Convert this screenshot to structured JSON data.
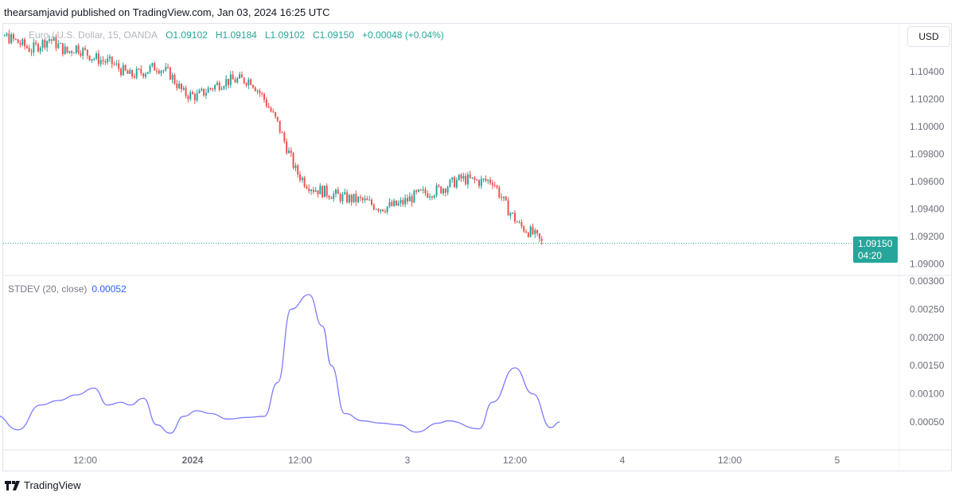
{
  "header": {
    "text": "thearsamjavid published on TradingView.com, Jan 03, 2024 16:25 UTC"
  },
  "legend": {
    "symbol": "Euro / U.S. Dollar, 15, OANDA",
    "open": "O1.09102",
    "high": "H1.09184",
    "low": "L1.09102",
    "close": "C1.09150",
    "change": "+0.00048 (+0.04%)"
  },
  "currency": "USD",
  "last_price": {
    "price": "1.09150",
    "countdown": "04:20"
  },
  "indicator": {
    "name": "STDEV (20, close)",
    "value": "0.00052"
  },
  "footer": {
    "brand": "TradingView"
  },
  "colors": {
    "up": "#26a69a",
    "down": "#ef5350",
    "stdev": "#7b7bff"
  },
  "chart_data": [
    {
      "type": "candlestick",
      "title": "EUR/USD 15m",
      "price_ticks": [
        "1.10400",
        "1.10200",
        "1.10000",
        "1.09800",
        "1.09600",
        "1.09400",
        "1.09200",
        "1.09000"
      ],
      "price_tick_values": [
        1.104,
        1.102,
        1.1,
        1.098,
        1.096,
        1.094,
        1.092,
        1.09
      ],
      "time_ticks": [
        "12:00",
        "2024",
        "12:00",
        "3",
        "12:00",
        "4",
        "12:00",
        "5"
      ],
      "time_tick_hours": [
        12,
        24,
        36,
        48,
        60,
        72,
        84,
        96
      ],
      "close_keypoints_hours": [
        0.5,
        2,
        4,
        6,
        8,
        10,
        11,
        13,
        15,
        17,
        18.5,
        20,
        21.5,
        23,
        24.5,
        26,
        27.5,
        29,
        30.5,
        32,
        33.5,
        34.5,
        35.5,
        36.5,
        37.5,
        39,
        41,
        43,
        45,
        47,
        49,
        51.5,
        54,
        56,
        57.5,
        59,
        60.5,
        62,
        63
      ],
      "close_keypoints": [
        1.1066,
        1.1069,
        1.1063,
        1.1056,
        1.1064,
        1.1054,
        1.1058,
        1.105,
        1.1046,
        1.1037,
        1.104,
        1.1044,
        1.1038,
        1.1024,
        1.1022,
        1.1028,
        1.1033,
        1.1034,
        1.1034,
        1.102,
        1.1002,
        1.0985,
        1.0968,
        1.096,
        1.0955,
        1.0952,
        1.0948,
        1.0946,
        1.0941,
        1.0943,
        1.095,
        1.0954,
        1.0962,
        1.096,
        1.0961,
        1.0942,
        1.0928,
        1.0922,
        1.0915
      ]
    },
    {
      "type": "line",
      "title": "STDEV (20, close)",
      "y_ticks": [
        "0.00300",
        "0.00250",
        "0.00200",
        "0.00150",
        "0.00100",
        "0.00050"
      ],
      "y_tick_values": [
        0.003,
        0.0025,
        0.002,
        0.0015,
        0.001,
        0.0005
      ],
      "x_hours": [
        0,
        2,
        4.5,
        7,
        9,
        11,
        13,
        14.5,
        16,
        17,
        18.5,
        20,
        21.5,
        23,
        24.5,
        26,
        28,
        30,
        32,
        33.5,
        35,
        37,
        38.5,
        39.5,
        41,
        43,
        45,
        47,
        49,
        51.5,
        52.5,
        56,
        57.5,
        60,
        62,
        64,
        65
      ],
      "values": [
        0.00058,
        0.00062,
        0.00036,
        0.0008,
        0.00088,
        0.00098,
        0.0011,
        0.0008,
        0.00085,
        0.0008,
        0.00092,
        0.00045,
        0.0003,
        0.0006,
        0.0007,
        0.00065,
        0.00055,
        0.00058,
        0.0006,
        0.0012,
        0.0025,
        0.00276,
        0.0022,
        0.0015,
        0.00065,
        0.00052,
        0.00048,
        0.00045,
        0.00032,
        0.00048,
        0.00052,
        0.00038,
        0.00085,
        0.00146,
        0.001,
        0.0004,
        0.0005
      ]
    }
  ]
}
